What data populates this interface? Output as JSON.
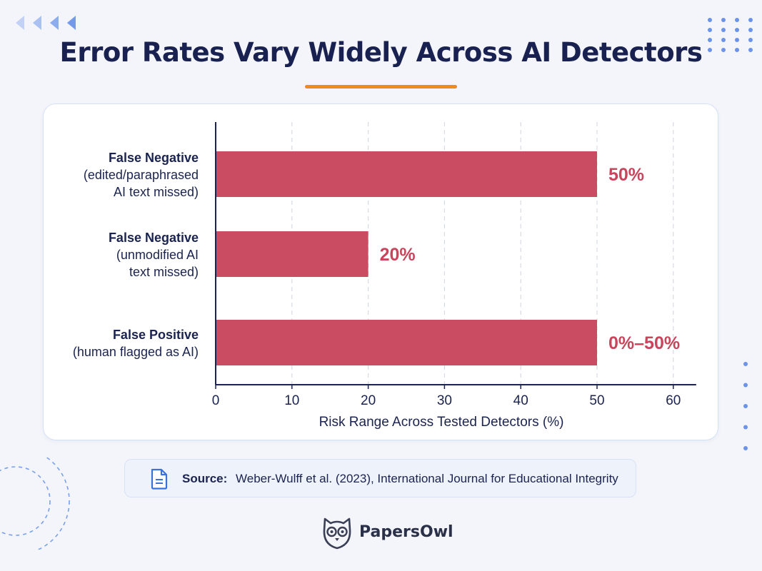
{
  "header": {
    "title": "Error Rates Vary Widely Across AI Detectors"
  },
  "colors": {
    "bar": "#c94c63",
    "value_label": "#c8455c",
    "accent_underline": "#ef8a1c",
    "deco": "#6b93e8",
    "title": "#18214f"
  },
  "chart_data": {
    "type": "bar",
    "orientation": "horizontal",
    "categories": [
      [
        "False Negative",
        "(edited/paraphrased",
        "AI text missed)"
      ],
      [
        "False Negative",
        "(unmodified AI",
        "text missed)"
      ],
      [
        "False Positive",
        "(human flagged as AI)"
      ]
    ],
    "values": [
      50,
      20,
      50
    ],
    "value_labels": [
      "50%",
      "20%",
      "0%–50%"
    ],
    "xlabel": "Risk Range Across Tested Detectors (%)",
    "ylabel": "",
    "xlim": [
      0,
      63
    ],
    "xticks": [
      0,
      10,
      20,
      30,
      40,
      50,
      60
    ],
    "grid": "vertical-dashed"
  },
  "source": {
    "label": "Source:",
    "text": "Weber-Wulff et al. (2023), International Journal for Educational Integrity",
    "icon": "document-icon"
  },
  "brand": {
    "name": "PapersOwl",
    "icon": "owl-logo-icon"
  },
  "decorations": {
    "top_left": "chevron-arrows-icon",
    "top_right": "dot-grid-icon",
    "right": "dot-column-icon",
    "bottom_left": "dashed-circles-icon"
  }
}
